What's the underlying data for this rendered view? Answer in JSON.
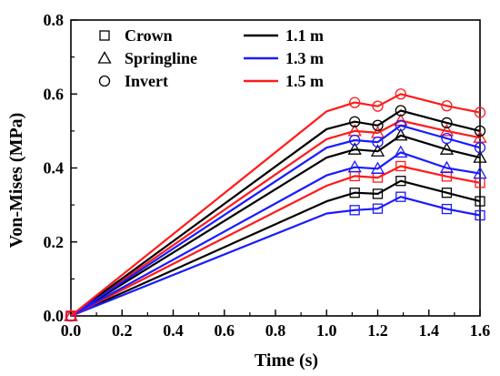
{
  "chart_data": {
    "type": "line",
    "xlabel": "Time (s)",
    "ylabel": "Von-Mises (MPa)",
    "xlim": [
      0,
      1.6
    ],
    "ylim": [
      0,
      0.8
    ],
    "xticks": [
      "0.0",
      "0.2",
      "0.4",
      "0.6",
      "0.8",
      "1.0",
      "1.2",
      "1.4",
      "1.6"
    ],
    "yticks": [
      "0.0",
      "0.2",
      "0.4",
      "0.6",
      "0.8"
    ],
    "grid": false,
    "legend_location": "upper-left",
    "marker_legend": [
      {
        "label": "Crown",
        "marker": "square"
      },
      {
        "label": "Springline",
        "marker": "triangle"
      },
      {
        "label": "Invert",
        "marker": "circle"
      }
    ],
    "color_legend": [
      {
        "label": "1.1 m",
        "color": "#000000"
      },
      {
        "label": "1.3 m",
        "color": "#1a1aff"
      },
      {
        "label": "1.5 m",
        "color": "#ff1a1a"
      }
    ],
    "series": [
      {
        "name": "Crown, 1.1 m",
        "color": "#000000",
        "marker": "square",
        "x": [
          0,
          1.0,
          1.11,
          1.2,
          1.29,
          1.47,
          1.6
        ],
        "y": [
          0,
          0.31,
          0.333,
          0.33,
          0.365,
          0.333,
          0.31
        ]
      },
      {
        "name": "Crown, 1.3 m",
        "color": "#1a1aff",
        "marker": "square",
        "x": [
          0,
          1.0,
          1.11,
          1.2,
          1.29,
          1.47,
          1.6
        ],
        "y": [
          0,
          0.277,
          0.286,
          0.29,
          0.322,
          0.289,
          0.272
        ]
      },
      {
        "name": "Crown, 1.5 m",
        "color": "#ff1a1a",
        "marker": "square",
        "x": [
          0,
          1.0,
          1.11,
          1.2,
          1.29,
          1.47,
          1.6
        ],
        "y": [
          0,
          0.352,
          0.378,
          0.374,
          0.405,
          0.377,
          0.36
        ]
      },
      {
        "name": "Springline, 1.1 m",
        "color": "#000000",
        "marker": "triangle",
        "x": [
          0,
          1.0,
          1.11,
          1.2,
          1.29,
          1.47,
          1.6
        ],
        "y": [
          0,
          0.428,
          0.45,
          0.445,
          0.488,
          0.45,
          0.428
        ]
      },
      {
        "name": "Springline, 1.3 m",
        "color": "#1a1aff",
        "marker": "triangle",
        "x": [
          0,
          1.0,
          1.11,
          1.2,
          1.29,
          1.47,
          1.6
        ],
        "y": [
          0,
          0.38,
          0.402,
          0.398,
          0.442,
          0.4,
          0.385
        ]
      },
      {
        "name": "Springline, 1.5 m",
        "color": "#ff1a1a",
        "marker": "triangle",
        "x": [
          0,
          1.0,
          1.11,
          1.2,
          1.29,
          1.47,
          1.6
        ],
        "y": [
          0,
          0.478,
          0.5,
          0.495,
          0.528,
          0.5,
          0.482
        ]
      },
      {
        "name": "Invert, 1.1 m",
        "color": "#000000",
        "marker": "circle",
        "x": [
          0,
          1.0,
          1.11,
          1.2,
          1.29,
          1.47,
          1.6
        ],
        "y": [
          0,
          0.505,
          0.525,
          0.515,
          0.555,
          0.522,
          0.5
        ]
      },
      {
        "name": "Invert, 1.3 m",
        "color": "#1a1aff",
        "marker": "circle",
        "x": [
          0,
          1.0,
          1.11,
          1.2,
          1.29,
          1.47,
          1.6
        ],
        "y": [
          0,
          0.455,
          0.475,
          0.47,
          0.515,
          0.48,
          0.455
        ]
      },
      {
        "name": "Invert, 1.5 m",
        "color": "#ff1a1a",
        "marker": "circle",
        "x": [
          0,
          1.0,
          1.11,
          1.2,
          1.29,
          1.47,
          1.6
        ],
        "y": [
          0,
          0.553,
          0.577,
          0.567,
          0.6,
          0.568,
          0.55
        ]
      }
    ]
  }
}
